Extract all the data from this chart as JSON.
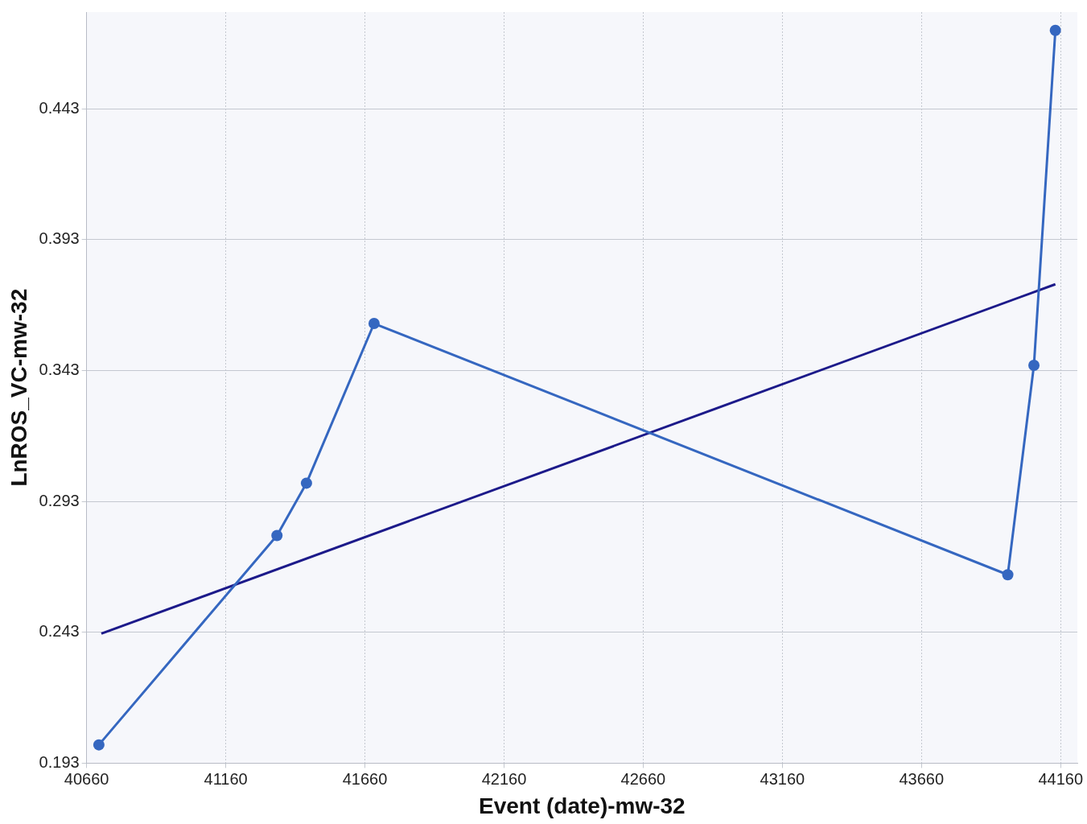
{
  "chart_data": {
    "type": "line",
    "xlabel": "Event (date)-mw-32",
    "ylabel": "LnROS_VC-mw-32",
    "series": [
      {
        "color": "#3567c0",
        "marker": "circle",
        "x": [
          40704,
          41344,
          41450,
          41693,
          43970,
          44064,
          44141
        ],
        "values": [
          0.2,
          0.28,
          0.3,
          0.361,
          0.265,
          0.345,
          0.473
        ]
      },
      {
        "color": "#1c1a8a",
        "marker": "none",
        "x": [
          40713,
          44141
        ],
        "values": [
          0.2425,
          0.376
        ]
      }
    ],
    "xlim": [
      40660,
      44220
    ],
    "xticks": [
      40660,
      41160,
      41660,
      42160,
      42660,
      43160,
      43660,
      44160
    ],
    "ylim": [
      0.193,
      0.48
    ],
    "yticks": [
      0.193,
      0.243,
      0.293,
      0.343,
      0.393,
      0.443
    ],
    "grid": true,
    "legend": false,
    "line_style": "solid"
  }
}
